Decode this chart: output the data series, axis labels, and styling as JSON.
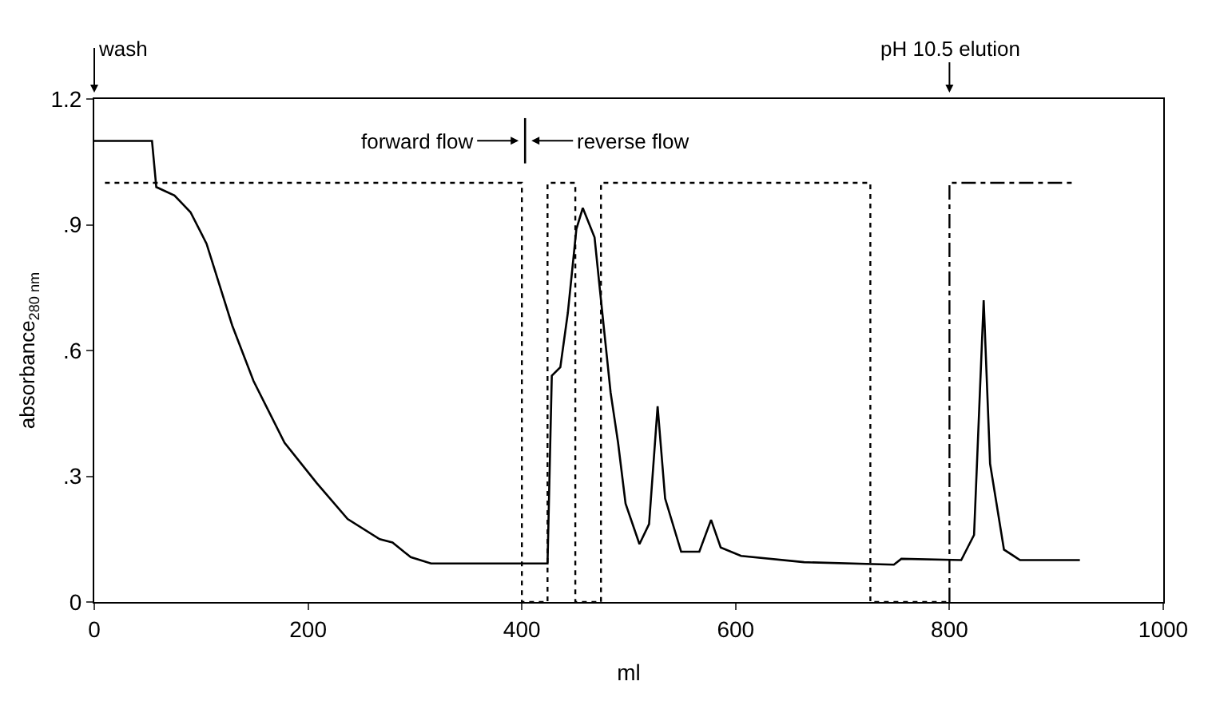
{
  "chart_data": {
    "type": "line",
    "xlabel": "ml",
    "ylabel": "absorbance$_{280 nm}$",
    "xlim": [
      0,
      1000
    ],
    "xticks": [
      0,
      200,
      400,
      600,
      800,
      1000
    ],
    "ylim": [
      0,
      1.2
    ],
    "yticks": [
      0,
      {
        "value": 0.3,
        "label": ".3"
      },
      {
        "value": 0.6,
        "label": ".6"
      },
      {
        "value": 0.9,
        "label": ".9"
      },
      1.2
    ],
    "marker": "none",
    "series": [
      {
        "color": "#000000",
        "line_style": "solid",
        "x": [
          0,
          54,
          58,
          75,
          90,
          105,
          129,
          149,
          178,
          208,
          237,
          267,
          279,
          296,
          315,
          424,
          428,
          436,
          443,
          451,
          457,
          468,
          473,
          483,
          490,
          497,
          510,
          519,
          527,
          534,
          549,
          566,
          577,
          586,
          605,
          664,
          748,
          755,
          811,
          823,
          832,
          838,
          851,
          866,
          922
        ],
        "values": [
          1.1,
          1.1,
          0.99,
          0.97,
          0.93,
          0.855,
          0.66,
          0.527,
          0.38,
          0.284,
          0.198,
          0.15,
          0.142,
          0.107,
          0.092,
          0.092,
          0.54,
          0.56,
          0.69,
          0.89,
          0.94,
          0.87,
          0.745,
          0.5,
          0.38,
          0.235,
          0.138,
          0.186,
          0.467,
          0.247,
          0.12,
          0.12,
          0.196,
          0.13,
          0.11,
          0.095,
          0.089,
          0.103,
          0.1,
          0.16,
          0.72,
          0.33,
          0.125,
          0.1,
          0.1
        ]
      },
      {
        "color": "#000000",
        "line_style": "dotted",
        "x": [
          10,
          400,
          400,
          424,
          424,
          450,
          450,
          474,
          474,
          726,
          726,
          800
        ],
        "values": [
          1.0,
          1.0,
          0,
          0,
          1.0,
          1.0,
          0,
          0,
          1.0,
          1.0,
          0,
          0
        ]
      },
      {
        "color": "#000000",
        "line_style": "dashed",
        "x": [
          800,
          800,
          917
        ],
        "values": [
          0,
          1.0,
          1.0
        ]
      }
    ],
    "annotations": [
      "wash",
      "pH 10.5 elution",
      "forward flow",
      "reverse flow"
    ]
  }
}
